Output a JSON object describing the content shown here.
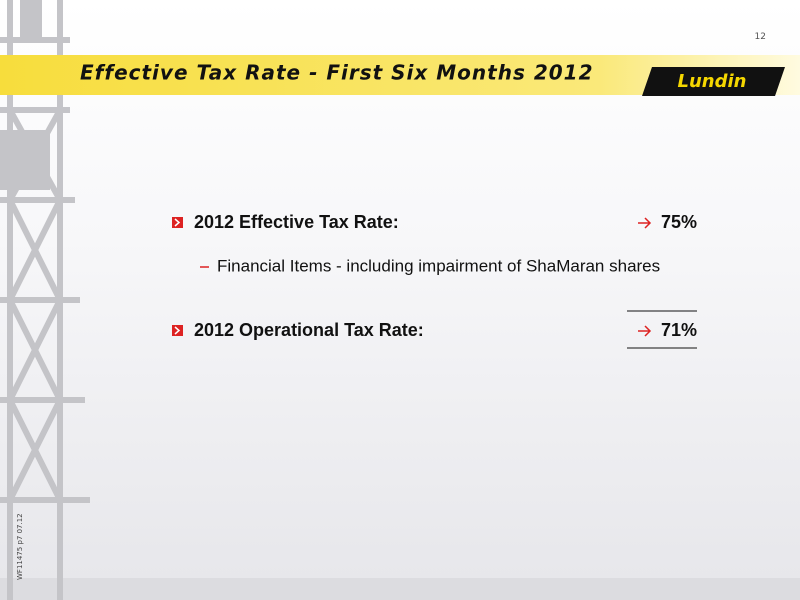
{
  "slide": {
    "page_number": "12",
    "title": "Effective Tax Rate - First Six Months 2012",
    "logo": "Lundin",
    "items": [
      {
        "label": "2012 Effective Tax Rate:",
        "value": "75%"
      },
      {
        "label": "Financial Items - including impairment of ShaMaran shares"
      },
      {
        "label": "2012 Operational Tax Rate:",
        "value": "71%"
      }
    ],
    "footer_code": "WF11475 p7 07.12"
  }
}
